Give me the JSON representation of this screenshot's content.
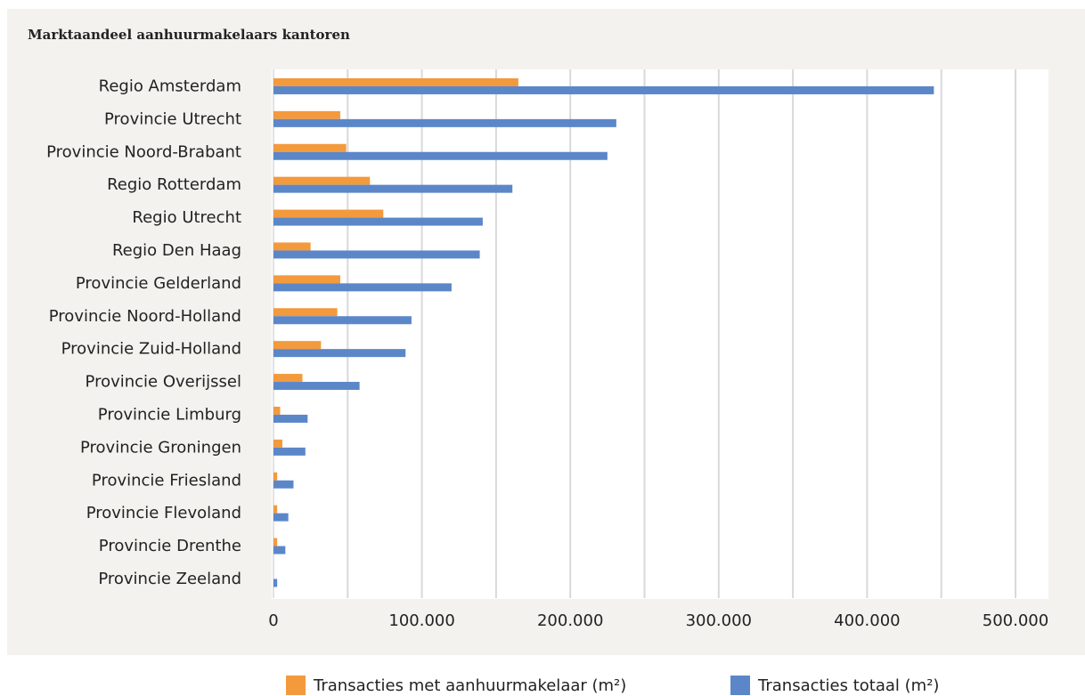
{
  "chart_data": {
    "type": "bar",
    "orientation": "horizontal",
    "title": "Marktaandeel aanhuurmakelaars kantoren",
    "categories": [
      "Regio Amsterdam",
      "Provincie Utrecht",
      "Provincie Noord-Brabant",
      "Regio Rotterdam",
      "Regio Utrecht",
      "Regio Den Haag",
      "Provincie Gelderland",
      "Provincie Noord-Holland",
      "Provincie Zuid-Holland",
      "Provincie Overijssel",
      "Provincie Limburg",
      "Provincie Groningen",
      "Provincie Friesland",
      "Provincie Flevoland",
      "Provincie Drenthe",
      "Provincie Zeeland"
    ],
    "series": [
      {
        "name": "Transacties met aanhuurmakelaar (m²)",
        "color": "#f39a3d",
        "values": [
          165000,
          45000,
          49000,
          65000,
          74000,
          25000,
          45000,
          43000,
          32000,
          19500,
          4500,
          6000,
          2500,
          2500,
          2500,
          0
        ]
      },
      {
        "name": "Transacties totaal (m²)",
        "color": "#5b87c9",
        "values": [
          445000,
          231000,
          225000,
          161000,
          141000,
          139000,
          120000,
          93000,
          89000,
          58000,
          23000,
          21500,
          13500,
          10000,
          8000,
          2500
        ]
      }
    ],
    "xlim": [
      0,
      525000
    ],
    "ticks": [
      0,
      100000,
      200000,
      300000,
      400000,
      500000
    ],
    "tick_labels": [
      "0",
      "100.000",
      "200.000",
      "300.000",
      "400.000",
      "500.000"
    ],
    "grid": true,
    "legend_position": "bottom"
  }
}
